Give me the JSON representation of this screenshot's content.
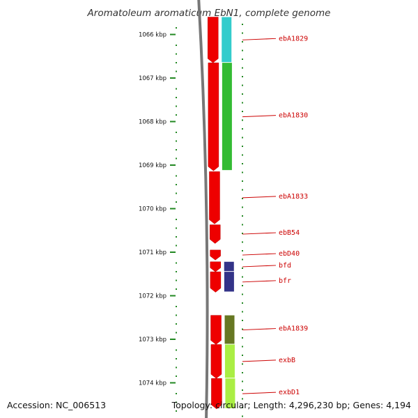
{
  "title": "Aromatoleum aromaticum EbN1, complete genome",
  "footer": {
    "accession": "Accession: NC_006513",
    "topology": "Topology: circular; Length: 4,296,230 bp; Genes: 4,194"
  },
  "scale": {
    "unit": "kbp",
    "ticks": [
      "1066 kbp",
      "1067 kbp",
      "1068 kbp",
      "1069 kbp",
      "1070 kbp",
      "1071 kbp",
      "1072 kbp",
      "1073 kbp",
      "1074 kbp"
    ]
  },
  "genes": [
    {
      "label": "ebA1829",
      "kbp_start": 1065.6,
      "kbp_end": 1066.65,
      "cog_color": "#33cccc",
      "strand": "+"
    },
    {
      "label": "ebA1830",
      "kbp_start": 1066.65,
      "kbp_end": 1069.13,
      "cog_color": "#33bb33",
      "strand": "+"
    },
    {
      "label": "ebA1833",
      "kbp_start": 1069.15,
      "kbp_end": 1070.35,
      "cog_color": null,
      "strand": "+"
    },
    {
      "label": "ebB54",
      "kbp_start": 1070.37,
      "kbp_end": 1070.8,
      "cog_color": null,
      "strand": "+"
    },
    {
      "label": "ebD40",
      "kbp_start": 1070.95,
      "kbp_end": 1071.18,
      "cog_color": null,
      "strand": "+"
    },
    {
      "label": "bfd",
      "kbp_start": 1071.22,
      "kbp_end": 1071.45,
      "cog_color": "#333388",
      "strand": "+"
    },
    {
      "label": "bfr",
      "kbp_start": 1071.45,
      "kbp_end": 1071.92,
      "cog_color": "#333388",
      "strand": "+"
    },
    {
      "label": "ebA1839",
      "kbp_start": 1072.45,
      "kbp_end": 1073.12,
      "cog_color": "#667722",
      "strand": "+"
    },
    {
      "label": "exbB",
      "kbp_start": 1073.12,
      "kbp_end": 1073.9,
      "cog_color": "#aaee44",
      "strand": "+"
    },
    {
      "label": "exbD1",
      "kbp_start": 1073.9,
      "kbp_end": 1074.6,
      "cog_color": "#aaee44",
      "strand": "+"
    }
  ],
  "colors": {
    "cds": "#ee0000",
    "backbone": "#777777",
    "tick": "#228822",
    "label": "#cc0000"
  }
}
